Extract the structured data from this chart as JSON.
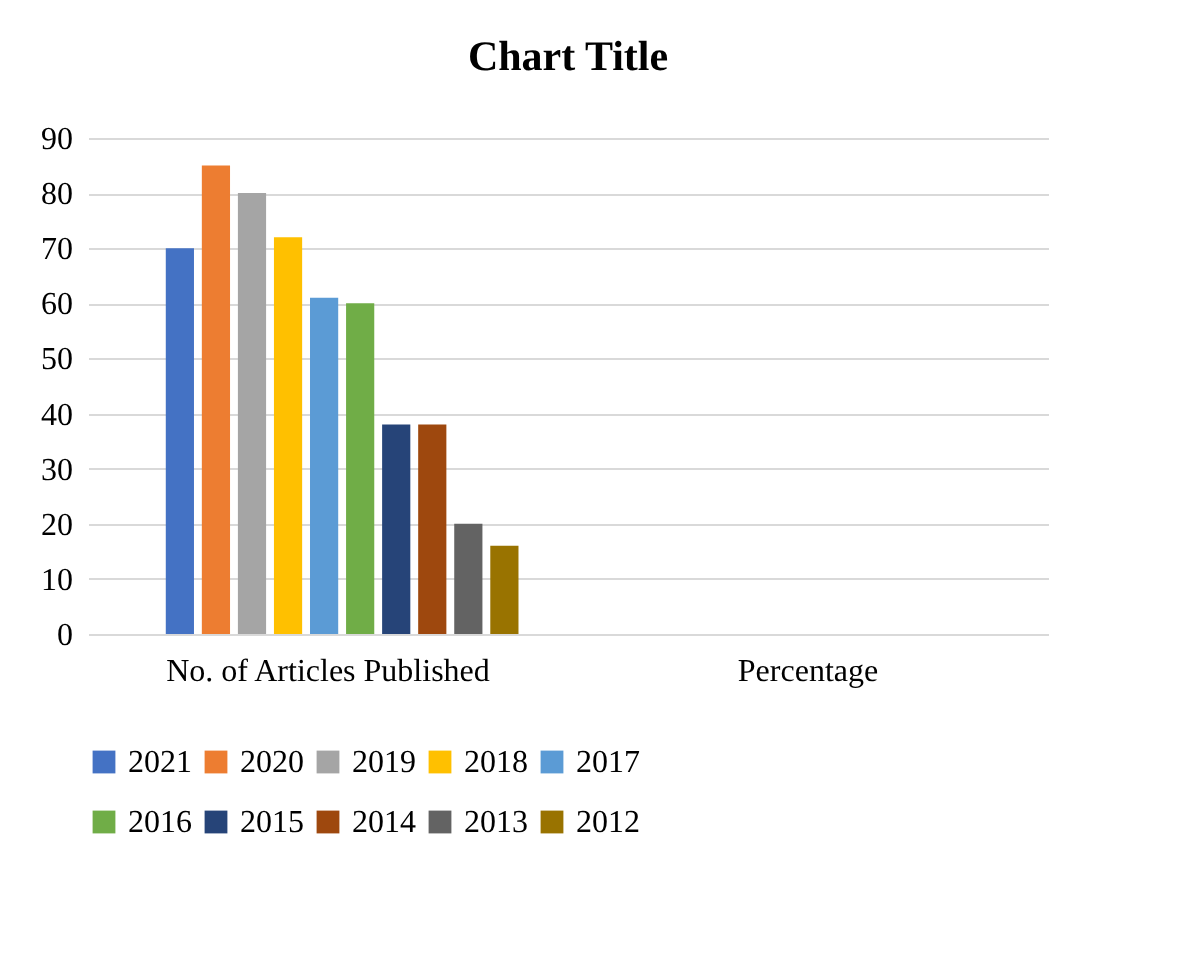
{
  "chart_data": {
    "type": "bar",
    "title": "Chart Title",
    "categories": [
      "No. of Articles Published",
      "Percentage"
    ],
    "series": [
      {
        "name": "2021",
        "color": "#4472c4",
        "values": [
          70,
          null
        ]
      },
      {
        "name": "2020",
        "color": "#ed7d31",
        "values": [
          85,
          null
        ]
      },
      {
        "name": "2019",
        "color": "#a5a5a5",
        "values": [
          80,
          null
        ]
      },
      {
        "name": "2018",
        "color": "#ffc000",
        "values": [
          72,
          null
        ]
      },
      {
        "name": "2017",
        "color": "#5b9bd5",
        "values": [
          61,
          null
        ]
      },
      {
        "name": "2016",
        "color": "#70ad47",
        "values": [
          60,
          null
        ]
      },
      {
        "name": "2015",
        "color": "#264478",
        "values": [
          38,
          null
        ]
      },
      {
        "name": "2014",
        "color": "#9e480e",
        "values": [
          38,
          null
        ]
      },
      {
        "name": "2013",
        "color": "#636363",
        "values": [
          20,
          null
        ]
      },
      {
        "name": "2012",
        "color": "#997300",
        "values": [
          16,
          null
        ]
      }
    ],
    "ylim": [
      0,
      90
    ],
    "yticks": [
      0,
      10,
      20,
      30,
      40,
      50,
      60,
      70,
      80,
      90
    ],
    "grid": "y",
    "legend": "bottom"
  }
}
